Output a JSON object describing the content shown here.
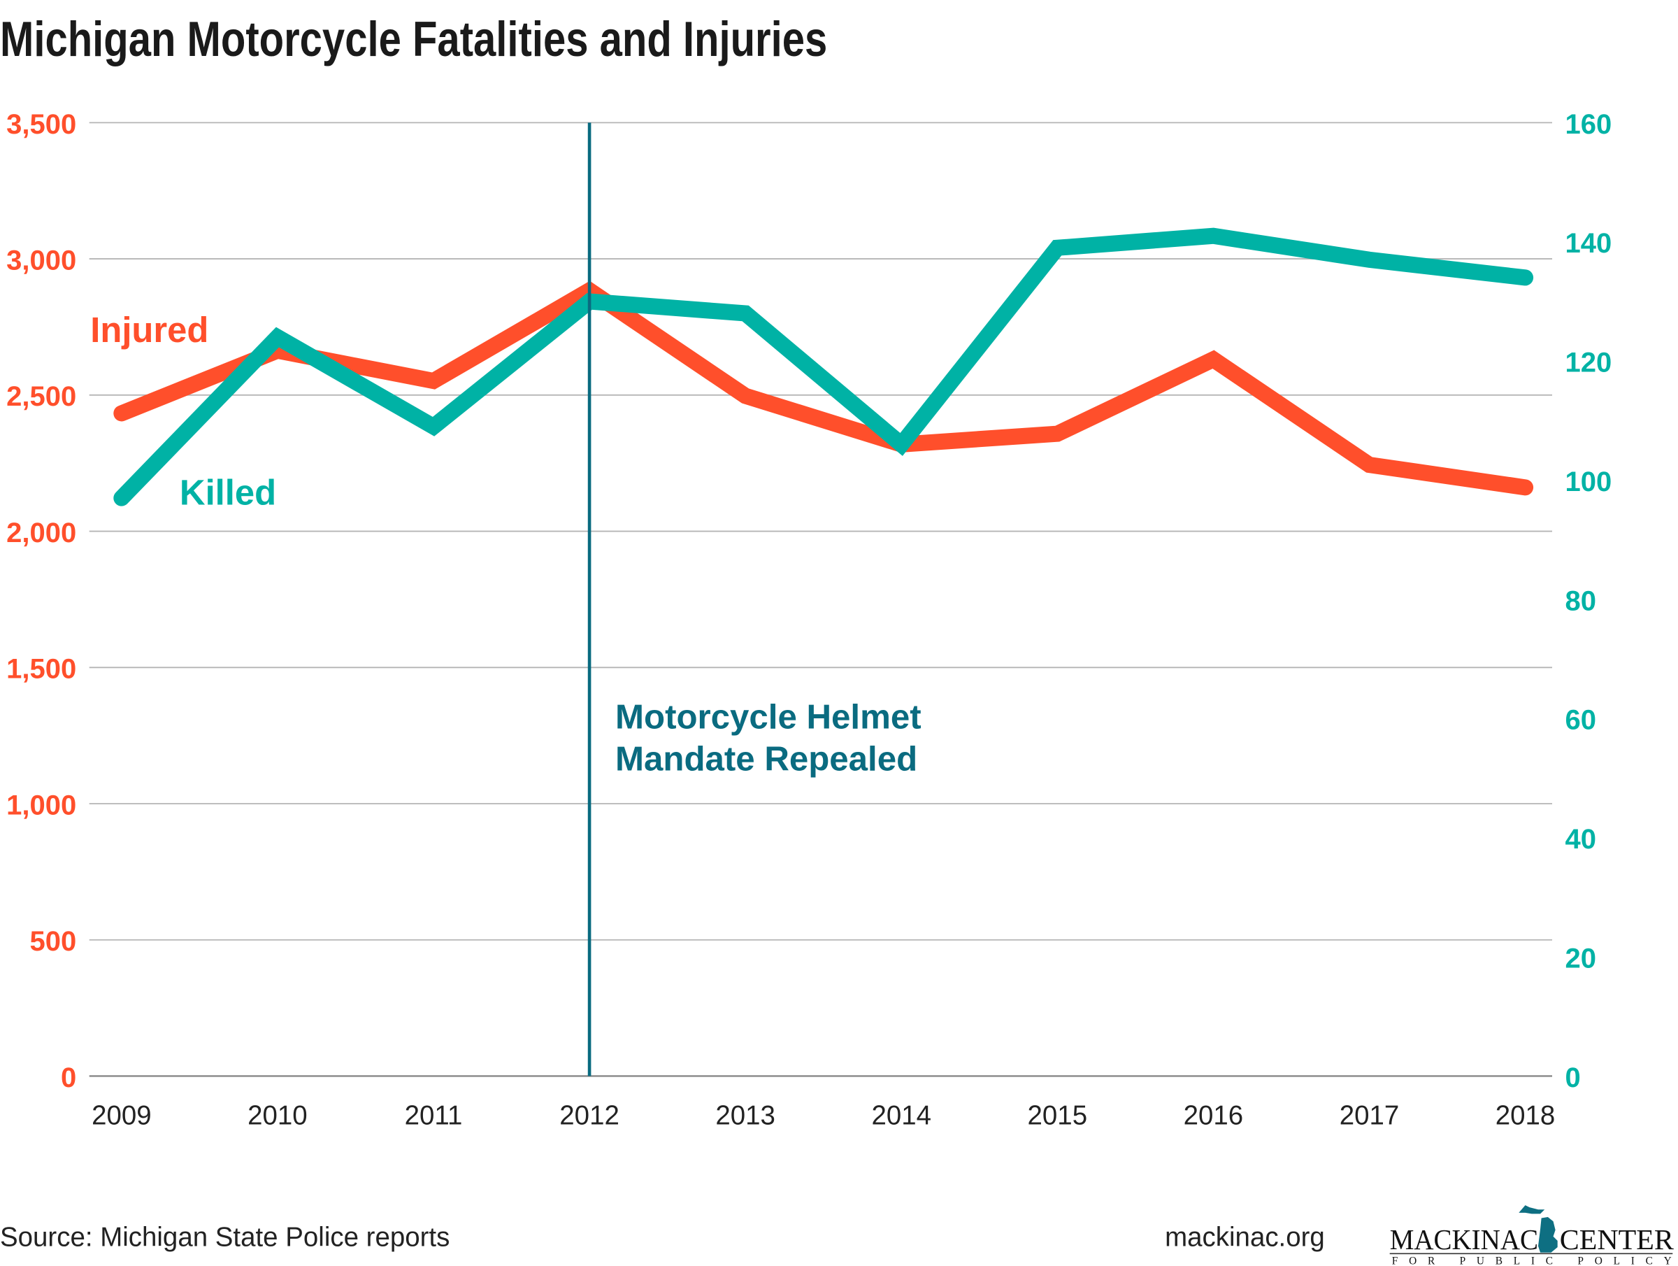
{
  "chart_data": {
    "type": "line",
    "title": "Michigan Motorcycle Fatalities and Injuries",
    "categories": [
      "2009",
      "2010",
      "2011",
      "2012",
      "2013",
      "2014",
      "2015",
      "2016",
      "2017",
      "2018"
    ],
    "series": [
      {
        "name": "Injured",
        "axis": "left",
        "color": "#ff4f2b",
        "values": [
          2433,
          2663,
          2552,
          2884,
          2497,
          2319,
          2358,
          2631,
          2244,
          2161
        ]
      },
      {
        "name": "Killed",
        "axis": "right",
        "color": "#00b2a5",
        "values": [
          97,
          124,
          109,
          130,
          128,
          106,
          139,
          141,
          137,
          134
        ]
      }
    ],
    "left_axis": {
      "ylim": [
        0,
        3500
      ],
      "ticks": [
        "0",
        "500",
        "1,000",
        "1,500",
        "2,000",
        "2,500",
        "3,000",
        "3,500"
      ],
      "color": "#ff4f2b"
    },
    "right_axis": {
      "ylim": [
        0,
        160
      ],
      "ticks": [
        "0",
        "20",
        "40",
        "60",
        "80",
        "100",
        "120",
        "140",
        "160"
      ],
      "color": "#00b2a5"
    },
    "grid": true,
    "annotation": {
      "x": "2012",
      "lines": [
        "Motorcycle Helmet",
        "Mandate Repealed"
      ],
      "color": "#0a6b80"
    }
  },
  "footer": {
    "source": "Source: Michigan State Police reports",
    "site": "mackinac.org",
    "logo_main_left": "MACKINAC",
    "logo_main_right": "CENTER",
    "logo_sub": "FOR PUBLIC POLICY"
  }
}
